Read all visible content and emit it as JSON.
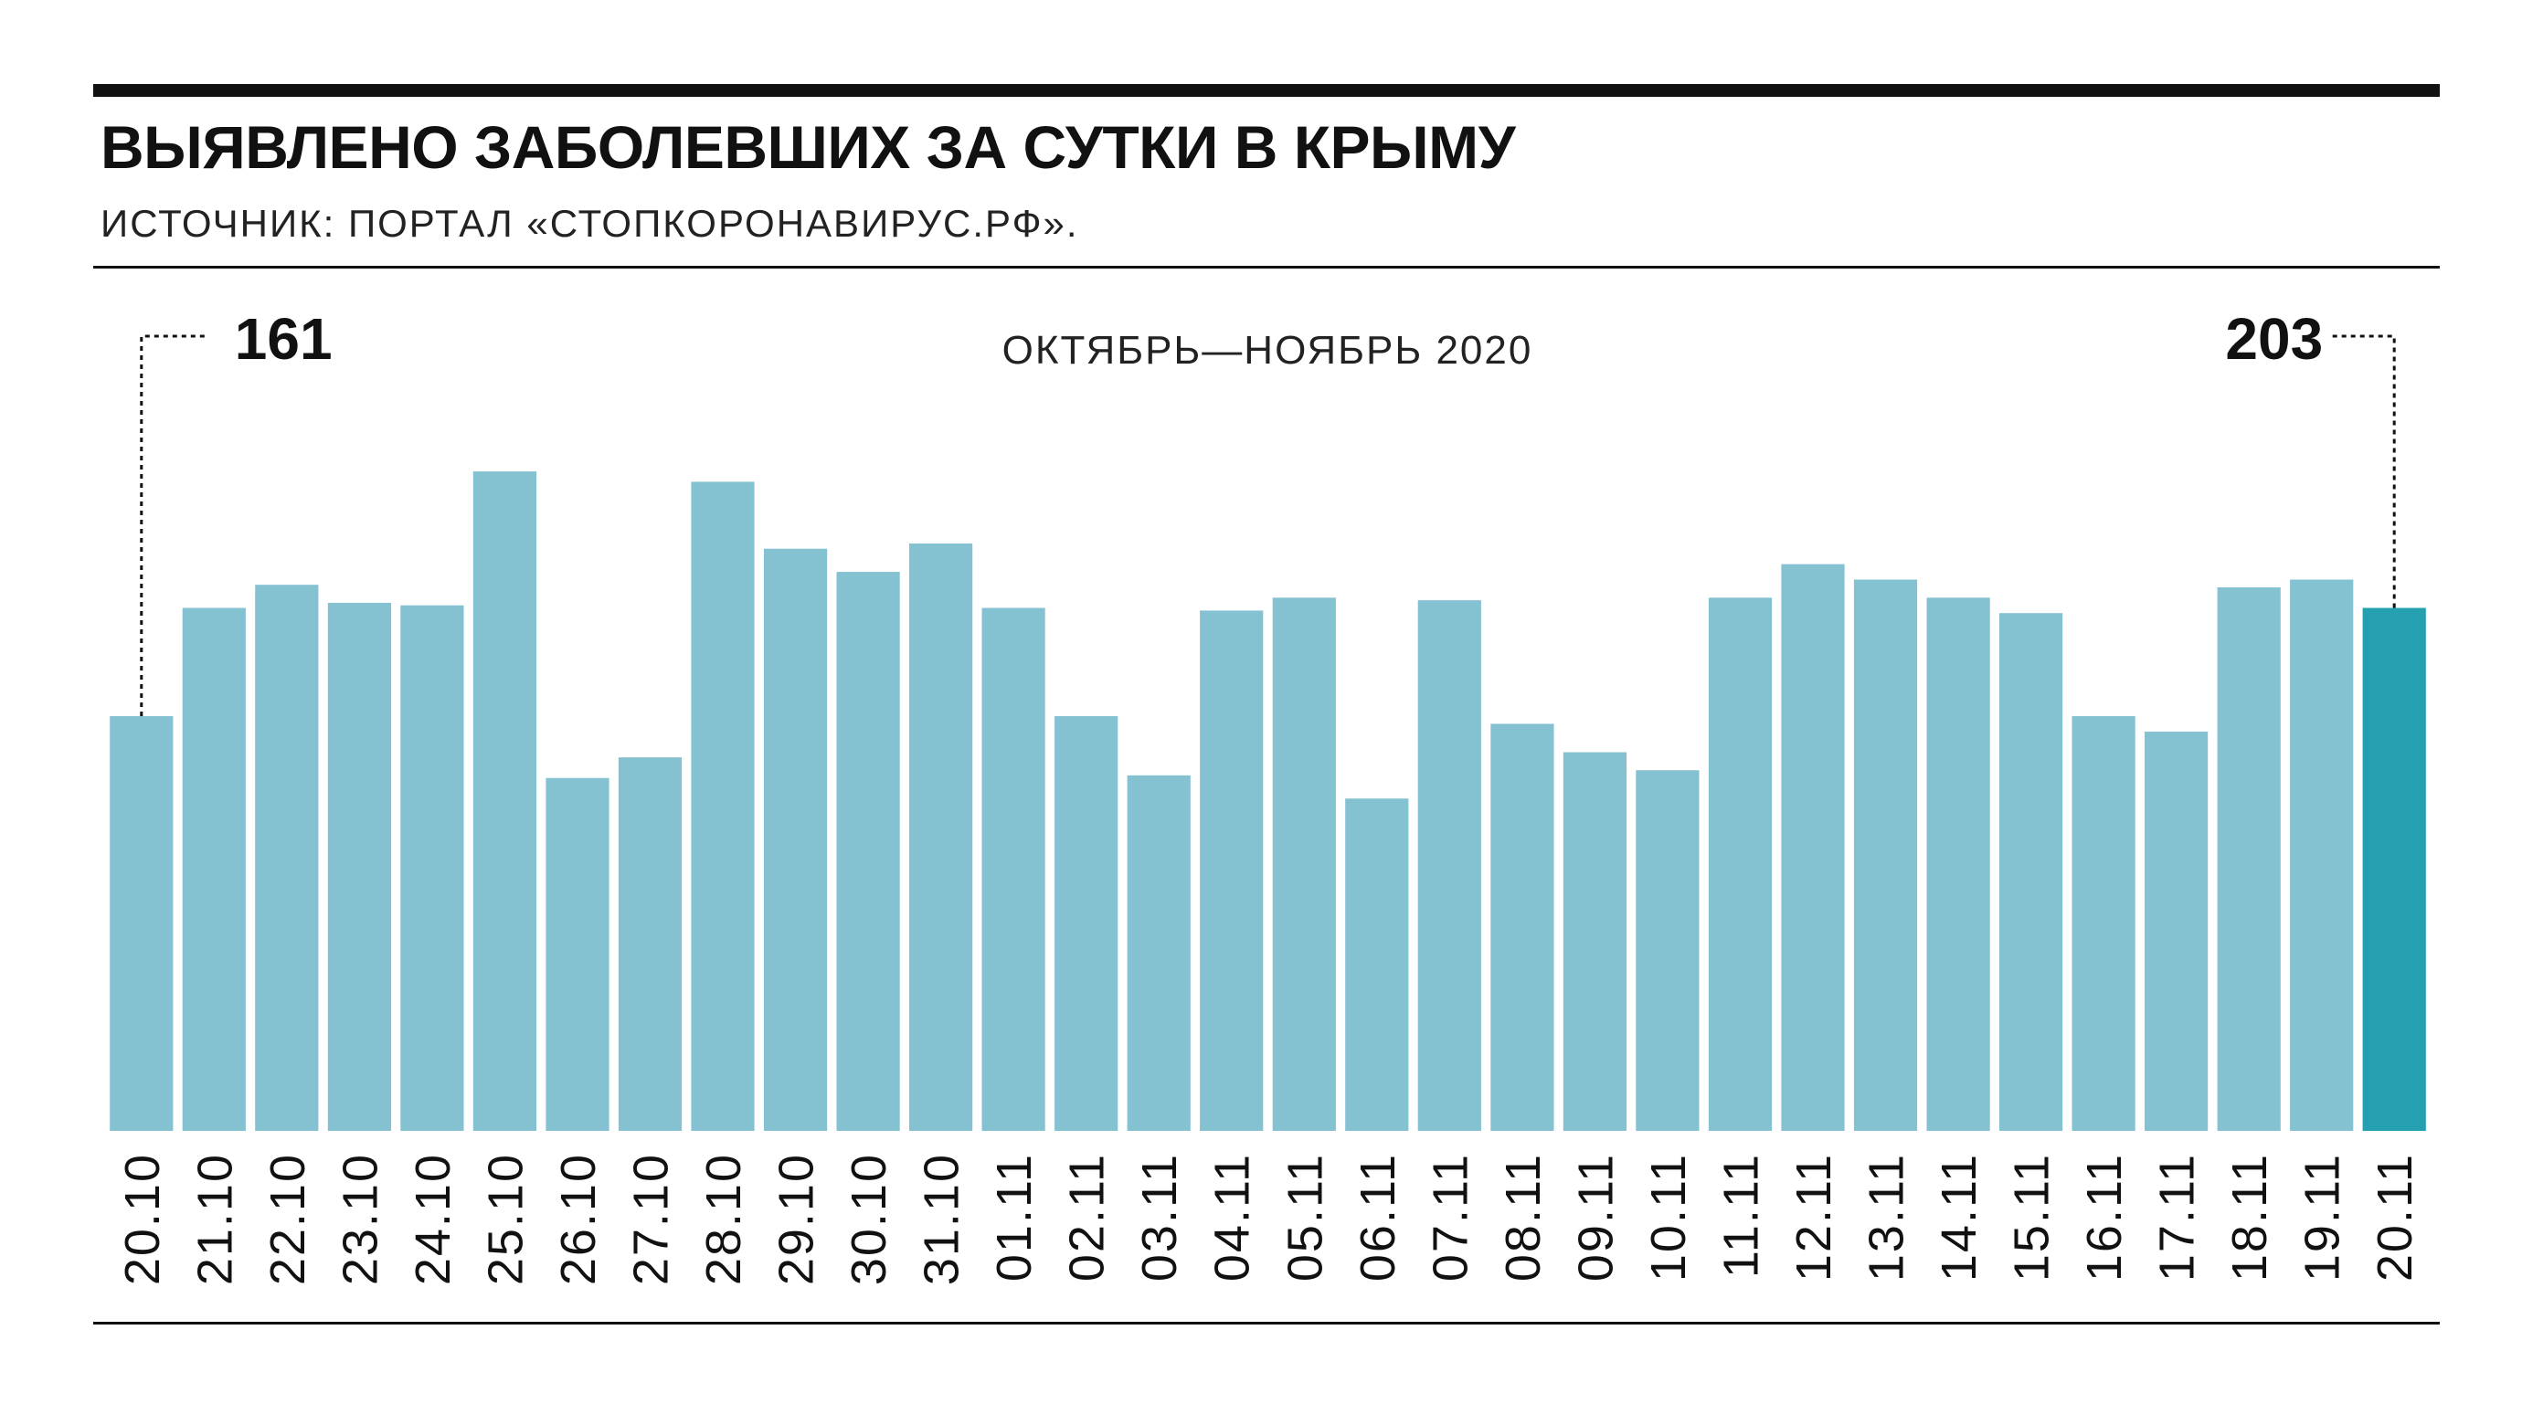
{
  "header": {
    "title_main": "ВЫЯВЛЕНО ЗАБОЛЕВШИХ ЗА СУТКИ В ",
    "title_bold": "КРЫМУ",
    "source": "ИСТОЧНИК: ПОРТАЛ «СТОПКОРОНАВИРУС.РФ»."
  },
  "chart_data": {
    "type": "bar",
    "subtitle": "ОКТЯБРЬ—НОЯБРЬ 2020",
    "categories": [
      "20.10",
      "21.10",
      "22.10",
      "23.10",
      "24.10",
      "25.10",
      "26.10",
      "27.10",
      "28.10",
      "29.10",
      "30.10",
      "31.10",
      "01.11",
      "02.11",
      "03.11",
      "04.11",
      "05.11",
      "06.11",
      "07.11",
      "08.11",
      "09.11",
      "10.11",
      "11.11",
      "12.11",
      "13.11",
      "14.11",
      "15.11",
      "16.11",
      "17.11",
      "18.11",
      "19.11",
      "20.11"
    ],
    "values": [
      161,
      203,
      212,
      205,
      204,
      256,
      137,
      145,
      252,
      226,
      217,
      228,
      203,
      161,
      138,
      202,
      207,
      129,
      206,
      158,
      147,
      140,
      207,
      220,
      214,
      207,
      201,
      161,
      155,
      211,
      214,
      203
    ],
    "ylim": [
      0,
      280
    ],
    "annotations": [
      {
        "category": "20.10",
        "label": "161"
      },
      {
        "category": "20.11",
        "label": "203"
      }
    ],
    "highlight_category": "20.11",
    "colors": {
      "bar": "#84c1d1",
      "highlight": "#24a0b0",
      "text": "#111111"
    },
    "grid": false,
    "legend": "none"
  }
}
